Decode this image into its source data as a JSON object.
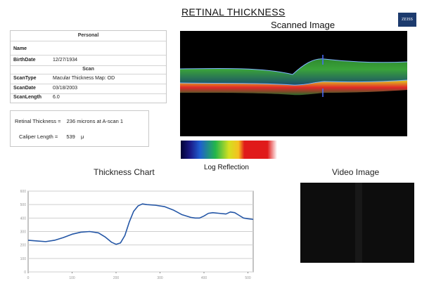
{
  "header": {
    "title": "RETINAL THICKNESS",
    "logo": "ZEISS"
  },
  "scanned_image": {
    "title": "Scanned Image"
  },
  "personal": {
    "title": "Personal",
    "name_label": "Name",
    "name_value": "",
    "birthdate_label": "BirthDate",
    "birthdate_value": "12/27/1934"
  },
  "scan": {
    "title": "Scan",
    "type_label": "ScanType",
    "type_value": "Macular Thickness Map: OD",
    "date_label": "ScanDate",
    "date_value": "03/18/2003",
    "length_label": "ScanLength",
    "length_value": "6.0"
  },
  "measurements": {
    "thickness_label": "Retinal Thickness =",
    "thickness_value": "236 microns at A-scan 1",
    "caliper_label": "Caliper Length =",
    "caliper_value": "539",
    "caliper_unit": "μ"
  },
  "colorbar": {
    "label": "Log Reflection"
  },
  "thickness_chart": {
    "title": "Thickness Chart"
  },
  "video_image": {
    "title": "Video Image"
  },
  "chart_data": {
    "type": "line",
    "title": "Thickness Chart",
    "xlabel": "",
    "ylabel": "",
    "xlim": [
      0,
      512
    ],
    "ylim": [
      0,
      600
    ],
    "x_ticks": [
      "0",
      "100",
      "200",
      "300",
      "400",
      "500"
    ],
    "y_ticks": [
      "0",
      "100",
      "200",
      "300",
      "400",
      "500",
      "600"
    ],
    "grid": true,
    "series": [
      {
        "color": "#2456a6",
        "x": [
          0,
          20,
          40,
          60,
          80,
          100,
          120,
          140,
          160,
          175,
          190,
          200,
          210,
          220,
          230,
          240,
          250,
          260,
          270,
          290,
          310,
          330,
          350,
          370,
          380,
          390,
          400,
          410,
          420,
          435,
          450,
          460,
          470,
          480,
          490,
          500,
          512
        ],
        "y": [
          235,
          230,
          225,
          235,
          255,
          280,
          295,
          300,
          290,
          260,
          220,
          205,
          215,
          270,
          370,
          450,
          490,
          505,
          500,
          495,
          485,
          460,
          425,
          405,
          400,
          400,
          415,
          435,
          440,
          435,
          430,
          445,
          440,
          420,
          400,
          395,
          390
        ]
      }
    ]
  }
}
